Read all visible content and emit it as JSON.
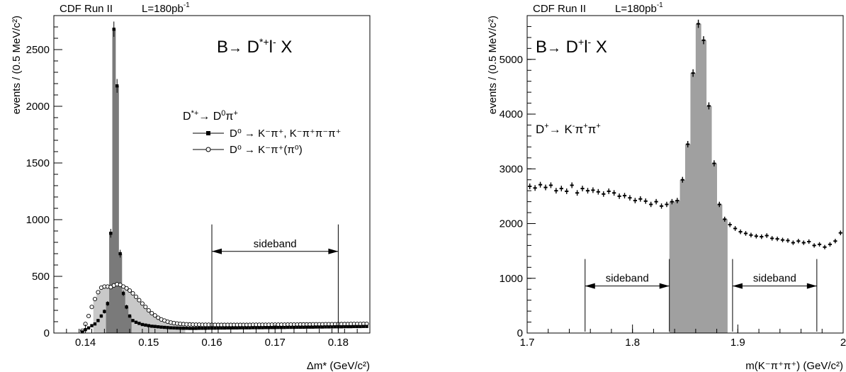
{
  "chart_data": [
    {
      "type": "histogram",
      "header": "CDF Run II",
      "lumi": "L=180pb",
      "lumi_sup": "-1",
      "process": {
        "a": "B",
        "arrow": "→",
        "b": " D",
        "b_sup": "*+",
        "c": "l",
        "c_sup": "-",
        "d": " X"
      },
      "decay_title": {
        "a": "D",
        "a_sup": "*+",
        "arrow": "→",
        "b": " D",
        "b_sup": "0",
        "c": "π",
        "c_sup": "+"
      },
      "legend": [
        {
          "marker": "filled-square",
          "label": "D⁰ → K⁻π⁺, K⁻π⁺π⁻π⁺"
        },
        {
          "marker": "open-circle",
          "label": "D⁰ → K⁻π⁺(π⁰)"
        }
      ],
      "ylabel": "events / (0.5 MeV/c²)",
      "xlabel": "Δm* (GeV/c²)",
      "xlim": [
        0.135,
        0.185
      ],
      "ylim": [
        0,
        2800
      ],
      "xticks": [
        0.14,
        0.15,
        0.16,
        0.17,
        0.18
      ],
      "xtick_labels": [
        "0.14",
        "0.15",
        "0.16",
        "0.17",
        "0.18"
      ],
      "yticks": [
        0,
        500,
        1000,
        1500,
        2000,
        2500
      ],
      "ytick_labels": [
        "0",
        "500",
        "1000",
        "1500",
        "2000",
        "2500"
      ],
      "annotation": {
        "label": "sideband",
        "x_from": 0.16,
        "x_to": 0.18,
        "y": 720
      },
      "bin_width": 0.0005,
      "series": [
        {
          "marker": "filled-square",
          "x": [
            0.1395,
            0.14,
            0.1405,
            0.141,
            0.1415,
            0.142,
            0.1425,
            0.143,
            0.1435,
            0.144,
            0.1445,
            0.145,
            0.1455,
            0.146,
            0.1465,
            0.147,
            0.1475,
            0.148,
            0.1485,
            0.149,
            0.1495,
            0.15,
            0.1505,
            0.151,
            0.1515,
            0.152,
            0.1525,
            0.153,
            0.1535,
            0.154,
            0.1545,
            0.155,
            0.1555,
            0.156,
            0.1565,
            0.157,
            0.1575,
            0.158,
            0.1585,
            0.159,
            0.1595,
            0.16,
            0.1605,
            0.161,
            0.1615,
            0.162,
            0.1625,
            0.163,
            0.1635,
            0.164,
            0.1645,
            0.165,
            0.1655,
            0.166,
            0.1665,
            0.167,
            0.1675,
            0.168,
            0.1685,
            0.169,
            0.1695,
            0.17,
            0.1705,
            0.171,
            0.1715,
            0.172,
            0.1725,
            0.173,
            0.1735,
            0.174,
            0.1745,
            0.175,
            0.1755,
            0.176,
            0.1765,
            0.177,
            0.1775,
            0.178,
            0.1785,
            0.179,
            0.1795,
            0.18,
            0.1805,
            0.181,
            0.1815,
            0.182,
            0.1825,
            0.183,
            0.1835,
            0.184,
            0.1845
          ],
          "y": [
            10,
            30,
            45,
            65,
            80,
            110,
            150,
            190,
            260,
            880,
            2680,
            2180,
            700,
            350,
            230,
            150,
            110,
            95,
            85,
            75,
            70,
            65,
            60,
            58,
            55,
            52,
            50,
            48,
            46,
            45,
            44,
            43,
            42,
            42,
            41,
            41,
            41,
            42,
            42,
            42,
            43,
            43,
            43,
            44,
            44,
            44,
            45,
            45,
            45,
            45,
            46,
            46,
            46,
            46,
            47,
            47,
            47,
            47,
            48,
            48,
            48,
            48,
            49,
            49,
            49,
            50,
            50,
            50,
            51,
            51,
            51,
            52,
            52,
            52,
            53,
            53,
            53,
            54,
            54,
            54,
            55,
            55,
            55,
            56,
            56,
            56,
            57,
            57,
            57,
            58,
            58
          ]
        },
        {
          "marker": "open-circle",
          "x": [
            0.1395,
            0.14,
            0.1405,
            0.141,
            0.1415,
            0.142,
            0.1425,
            0.143,
            0.1435,
            0.144,
            0.1445,
            0.145,
            0.1455,
            0.146,
            0.1465,
            0.147,
            0.1475,
            0.148,
            0.1485,
            0.149,
            0.1495,
            0.15,
            0.1505,
            0.151,
            0.1515,
            0.152,
            0.1525,
            0.153,
            0.1535,
            0.154,
            0.1545,
            0.155,
            0.1555,
            0.156,
            0.1565,
            0.157,
            0.1575,
            0.158,
            0.1585,
            0.159,
            0.1595,
            0.16,
            0.1605,
            0.161,
            0.1615,
            0.162,
            0.1625,
            0.163,
            0.1635,
            0.164,
            0.1645,
            0.165,
            0.1655,
            0.166,
            0.1665,
            0.167,
            0.1675,
            0.168,
            0.1685,
            0.169,
            0.1695,
            0.17,
            0.1705,
            0.171,
            0.1715,
            0.172,
            0.1725,
            0.173,
            0.1735,
            0.174,
            0.1745,
            0.175,
            0.1755,
            0.176,
            0.1765,
            0.177,
            0.1775,
            0.178,
            0.1785,
            0.179,
            0.1795,
            0.18,
            0.1805,
            0.181,
            0.1815,
            0.182,
            0.1825,
            0.183,
            0.1835,
            0.184,
            0.1845
          ],
          "y": [
            20,
            80,
            150,
            230,
            300,
            360,
            400,
            410,
            410,
            405,
            420,
            430,
            425,
            410,
            395,
            375,
            350,
            320,
            290,
            260,
            230,
            200,
            175,
            155,
            135,
            120,
            110,
            100,
            93,
            88,
            84,
            81,
            79,
            77,
            76,
            75,
            74,
            74,
            73,
            73,
            73,
            73,
            72,
            72,
            72,
            72,
            72,
            72,
            72,
            72,
            72,
            72,
            72,
            72,
            73,
            73,
            73,
            73,
            73,
            73,
            74,
            74,
            74,
            74,
            74,
            75,
            75,
            75,
            75,
            76,
            76,
            76,
            76,
            77,
            77,
            77,
            77,
            78,
            78,
            78,
            78,
            79,
            79,
            79,
            79,
            80,
            80,
            80,
            80,
            81,
            81
          ]
        }
      ]
    },
    {
      "type": "histogram",
      "header": "CDF Run II",
      "lumi": "L=180pb",
      "lumi_sup": "-1",
      "process": {
        "a": "B",
        "arrow": "→",
        "b": " D",
        "b_sup": "+",
        "c": "l",
        "c_sup": "-",
        "d": " X"
      },
      "decay_title": {
        "a": "D",
        "a_sup": "+",
        "arrow": "→",
        "b": " K",
        "b_sup": "-",
        "c": "π",
        "c_sup": "+",
        "e": "π",
        "e_sup": "+"
      },
      "ylabel": "events / (0.5 MeV/c²)",
      "xlabel": "m(K⁻π⁺π⁺) (GeV/c²)",
      "xlim": [
        1.7,
        2.0
      ],
      "ylim": [
        0,
        5800
      ],
      "xticks": [
        1.7,
        1.8,
        1.9,
        2.0
      ],
      "xtick_labels": [
        "1.7",
        "1.8",
        "1.9",
        "2"
      ],
      "yticks": [
        0,
        1000,
        2000,
        3000,
        4000,
        5000
      ],
      "ytick_labels": [
        "0",
        "1000",
        "2000",
        "3000",
        "4000",
        "5000"
      ],
      "sidebands": [
        {
          "label": "sideband",
          "x_from": 1.755,
          "x_to": 1.835,
          "y": 860
        },
        {
          "label": "sideband",
          "x_from": 1.895,
          "x_to": 1.975,
          "y": 860
        }
      ],
      "bin_width": 0.005,
      "series": [
        {
          "marker": "filled-plus",
          "x": [
            1.7025,
            1.7075,
            1.7125,
            1.7175,
            1.7225,
            1.7275,
            1.7325,
            1.7375,
            1.7425,
            1.7475,
            1.7525,
            1.7575,
            1.7625,
            1.7675,
            1.7725,
            1.7775,
            1.7825,
            1.7875,
            1.7925,
            1.7975,
            1.8025,
            1.8075,
            1.8125,
            1.8175,
            1.8225,
            1.8275,
            1.8325,
            1.8375,
            1.8425,
            1.8475,
            1.8525,
            1.8575,
            1.8625,
            1.8675,
            1.8725,
            1.8775,
            1.8825,
            1.8875,
            1.8925,
            1.8975,
            1.9025,
            1.9075,
            1.9125,
            1.9175,
            1.9225,
            1.9275,
            1.9325,
            1.9375,
            1.9425,
            1.9475,
            1.9525,
            1.9575,
            1.9625,
            1.9675,
            1.9725,
            1.9775,
            1.9825,
            1.9875,
            1.9925,
            1.9975
          ],
          "y": [
            2680,
            2650,
            2710,
            2660,
            2700,
            2600,
            2640,
            2590,
            2700,
            2560,
            2640,
            2600,
            2610,
            2580,
            2540,
            2590,
            2560,
            2500,
            2510,
            2470,
            2420,
            2450,
            2410,
            2350,
            2400,
            2320,
            2350,
            2400,
            2420,
            2800,
            3450,
            4750,
            5650,
            5350,
            4150,
            3100,
            2350,
            2080,
            1980,
            1910,
            1850,
            1820,
            1790,
            1770,
            1760,
            1780,
            1730,
            1720,
            1700,
            1690,
            1650,
            1680,
            1650,
            1670,
            1600,
            1620,
            1570,
            1620,
            1680,
            1830
          ]
        }
      ]
    }
  ]
}
